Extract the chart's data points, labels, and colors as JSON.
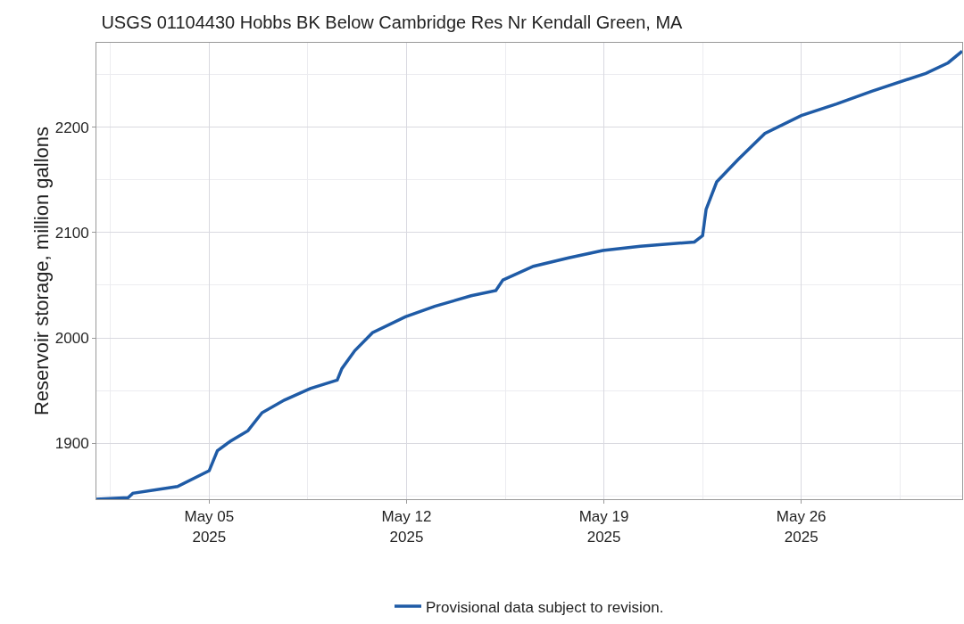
{
  "chart_data": {
    "type": "line",
    "title": "USGS 01104430 Hobbs BK Below Cambridge Res Nr Kendall Green, MA",
    "ylabel": "Reservoir storage, million gallons",
    "x": [
      "2025-05-01T00:00",
      "2025-05-02T03:00",
      "2025-05-02T07:00",
      "2025-05-03T21:00",
      "2025-05-05T00:00",
      "2025-05-05T07:00",
      "2025-05-05T18:00",
      "2025-05-06T09:00",
      "2025-05-06T21:00",
      "2025-05-07T16:00",
      "2025-05-08T14:00",
      "2025-05-09T13:00",
      "2025-05-09T17:00",
      "2025-05-10T04:00",
      "2025-05-10T19:00",
      "2025-05-11T23:00",
      "2025-05-13T00:00",
      "2025-05-14T07:00",
      "2025-05-15T04:00",
      "2025-05-15T10:00",
      "2025-05-16T12:00",
      "2025-05-17T18:00",
      "2025-05-18T23:00",
      "2025-05-20T07:00",
      "2025-05-22T05:00",
      "2025-05-22T12:00",
      "2025-05-22T15:00",
      "2025-05-23T00:00",
      "2025-05-23T18:00",
      "2025-05-24T17:00",
      "2025-05-26T00:00",
      "2025-05-27T06:00",
      "2025-05-28T12:00",
      "2025-05-30T10:00",
      "2025-05-31T05:00",
      "2025-05-31T17:00"
    ],
    "series": [
      {
        "name": "Provisional data subject to revision.",
        "color": "#1f5ba6",
        "values": [
          1847,
          1848.5,
          1852.6,
          1859,
          1874,
          1893,
          1902,
          1912,
          1929,
          1941,
          1952,
          1960,
          1971,
          1988,
          2005,
          2020,
          2030,
          2040,
          2045,
          2055,
          2068,
          2076,
          2083,
          2087,
          2091,
          2097,
          2122,
          2148,
          2169,
          2194,
          2211,
          2222,
          2234,
          2251,
          2261,
          2272
        ]
      }
    ],
    "xlim": [
      "2025-05-01T00:00",
      "2025-05-31T17:00"
    ],
    "xticks": [
      {
        "value": "2025-05-05",
        "label": "May 05\n2025"
      },
      {
        "value": "2025-05-12",
        "label": "May 12\n2025"
      },
      {
        "value": "2025-05-19",
        "label": "May 19\n2025"
      },
      {
        "value": "2025-05-26",
        "label": "May 26\n2025"
      }
    ],
    "ylim": [
      1847,
      2280
    ],
    "yticks": [
      1900,
      2000,
      2100,
      2200
    ],
    "grid": true,
    "legend": "bottom",
    "line_style": "solid",
    "marker": "none"
  }
}
